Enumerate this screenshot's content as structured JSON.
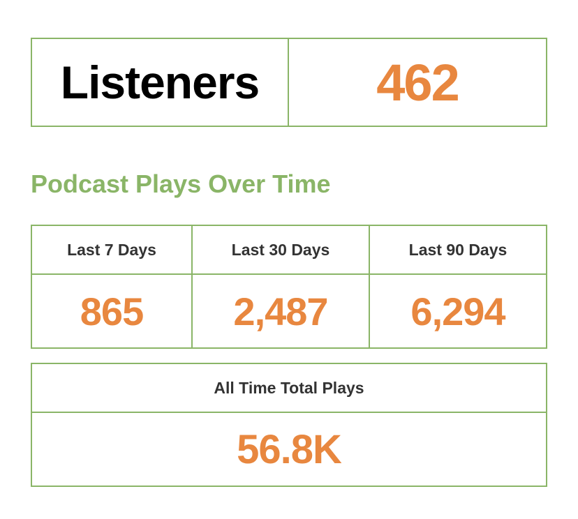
{
  "colors": {
    "accent_orange": "#e8873f",
    "border_green": "#8ab567",
    "label_dark": "#333333"
  },
  "listeners": {
    "label": "Listeners",
    "value": "462"
  },
  "section": {
    "title": "Podcast Plays Over Time"
  },
  "periods": [
    {
      "label": "Last 7 Days",
      "value": "865"
    },
    {
      "label": "Last 30 Days",
      "value": "2,487"
    },
    {
      "label": "Last 90 Days",
      "value": "6,294"
    }
  ],
  "all_time": {
    "label": "All Time Total Plays",
    "value": "56.8K"
  }
}
